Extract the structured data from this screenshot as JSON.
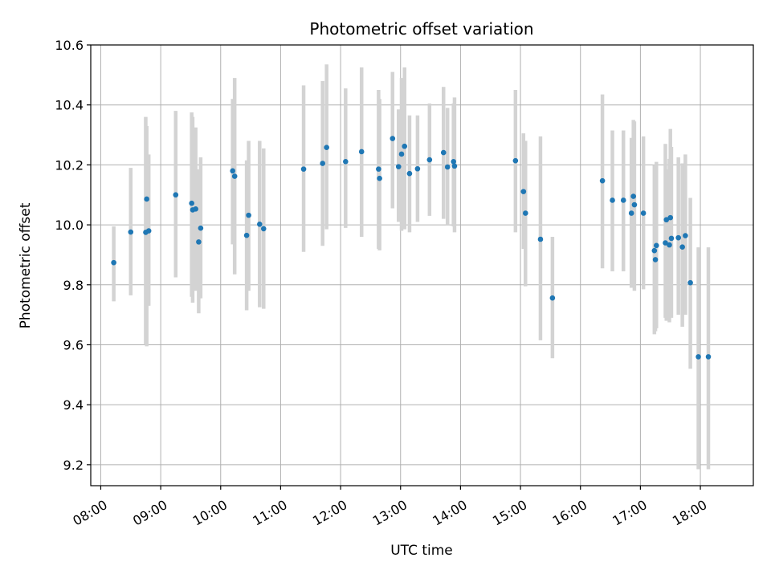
{
  "chart_data": {
    "type": "scatter",
    "title": "Photometric offset variation",
    "xlabel": "UTC time",
    "ylabel": "Photometric offset",
    "x_ticks": [
      "08:00",
      "09:00",
      "10:00",
      "11:00",
      "12:00",
      "13:00",
      "14:00",
      "15:00",
      "16:00",
      "17:00",
      "18:00"
    ],
    "y_ticks": [
      "9.2",
      "9.4",
      "9.6",
      "9.8",
      "10.0",
      "10.2",
      "10.4",
      "10.6"
    ],
    "ylim": [
      9.13,
      10.6
    ],
    "xlim": [
      "07:50",
      "18:53"
    ],
    "grid": true,
    "colors": {
      "marker": "#1f77b4",
      "errorbar": "#d3d3d3",
      "grid": "#b0b0b0"
    },
    "series": [
      {
        "x": [
          "08:13",
          "08:30",
          "08:45",
          "08:46",
          "08:48",
          "09:15",
          "09:31",
          "09:32",
          "09:35",
          "09:38",
          "09:40",
          "10:12",
          "10:14",
          "10:26",
          "10:28",
          "10:39",
          "10:43",
          "11:23",
          "11:42",
          "11:46",
          "12:05",
          "12:21",
          "12:38",
          "12:39",
          "12:52",
          "12:58",
          "13:01",
          "13:04",
          "13:09",
          "13:17",
          "13:29",
          "13:43",
          "13:47",
          "13:53",
          "13:54",
          "14:55",
          "15:03",
          "15:05",
          "15:20",
          "15:32",
          "16:22",
          "16:32",
          "16:43",
          "16:51",
          "16:53",
          "16:54",
          "17:03",
          "17:14",
          "17:15",
          "17:16",
          "17:25",
          "17:26",
          "17:29",
          "17:30",
          "17:31",
          "17:38",
          "17:42",
          "17:45",
          "17:50",
          "17:58",
          "18:08"
        ],
        "y": [
          9.874,
          9.976,
          9.975,
          10.086,
          9.98,
          10.1,
          10.072,
          10.05,
          10.053,
          9.943,
          9.989,
          10.18,
          10.162,
          9.965,
          10.032,
          10.002,
          9.987,
          10.186,
          10.205,
          10.258,
          10.211,
          10.244,
          10.186,
          10.155,
          10.288,
          10.194,
          10.236,
          10.262,
          10.171,
          10.187,
          10.217,
          10.241,
          10.193,
          10.211,
          10.196,
          10.214,
          10.111,
          10.039,
          9.952,
          9.756,
          10.147,
          10.082,
          10.082,
          10.039,
          10.095,
          10.067,
          10.039,
          9.914,
          9.884,
          9.931,
          9.94,
          10.017,
          9.933,
          10.024,
          9.955,
          9.957,
          9.926,
          9.964,
          9.807,
          9.56,
          9.56
        ],
        "err_low": [
          9.745,
          9.765,
          9.6,
          9.595,
          9.73,
          9.825,
          9.76,
          9.74,
          9.78,
          9.705,
          9.755,
          9.935,
          9.835,
          9.715,
          9.78,
          9.725,
          9.72,
          9.91,
          9.93,
          9.985,
          9.99,
          9.96,
          9.92,
          9.915,
          10.055,
          10.01,
          9.98,
          9.985,
          9.975,
          10.01,
          10.03,
          10.02,
          10.0,
          9.995,
          9.975,
          9.975,
          9.92,
          9.795,
          9.615,
          9.555,
          9.855,
          9.845,
          9.845,
          9.79,
          9.8,
          9.78,
          9.785,
          9.635,
          9.645,
          9.655,
          9.69,
          9.68,
          9.675,
          9.71,
          9.69,
          9.7,
          9.66,
          9.7,
          9.52,
          9.185,
          9.185
        ],
        "err_high": [
          9.995,
          10.19,
          10.36,
          10.33,
          10.235,
          10.38,
          10.375,
          10.36,
          10.325,
          10.185,
          10.225,
          10.42,
          10.49,
          10.215,
          10.28,
          10.28,
          10.255,
          10.465,
          10.48,
          10.535,
          10.455,
          10.525,
          10.45,
          10.42,
          10.51,
          10.385,
          10.49,
          10.525,
          10.365,
          10.365,
          10.405,
          10.46,
          10.39,
          10.405,
          10.425,
          10.45,
          10.305,
          10.28,
          10.295,
          9.96,
          10.435,
          10.315,
          10.315,
          10.29,
          10.35,
          10.345,
          10.295,
          10.2,
          10.185,
          10.21,
          10.27,
          10.185,
          10.22,
          10.32,
          10.26,
          10.225,
          10.205,
          10.235,
          10.09,
          9.925,
          9.925
        ]
      }
    ]
  }
}
